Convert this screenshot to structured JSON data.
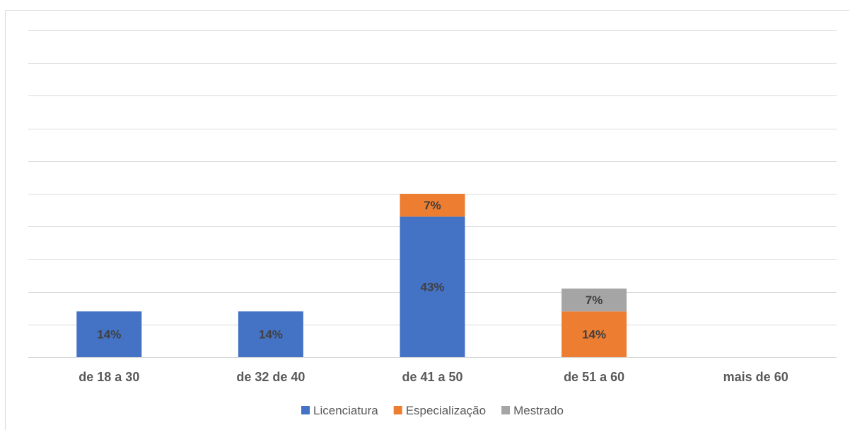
{
  "chart_data": {
    "type": "bar",
    "stacked": true,
    "categories": [
      "de 18 a 30",
      "de 32 de 40",
      "de 41 a 50",
      "de 51 a 60",
      "mais de 60"
    ],
    "series": [
      {
        "name": "Licenciatura",
        "values": [
          14,
          14,
          43,
          0,
          0
        ],
        "labels": [
          "14%",
          "14%",
          "43%",
          "",
          ""
        ],
        "color": "#4472c4"
      },
      {
        "name": "Especialização",
        "values": [
          0,
          0,
          7,
          14,
          0
        ],
        "labels": [
          "",
          "",
          "7%",
          "14%",
          ""
        ],
        "color": "#ed7d31"
      },
      {
        "name": "Mestrado",
        "values": [
          0,
          0,
          0,
          7,
          0
        ],
        "labels": [
          "",
          "",
          "",
          "7%",
          ""
        ],
        "color": "#a5a5a5"
      }
    ],
    "ylim": [
      0,
      100
    ],
    "y_gridlines": 10,
    "grid": true,
    "legend": "bottom",
    "title": "",
    "xlabel": "",
    "ylabel": ""
  }
}
